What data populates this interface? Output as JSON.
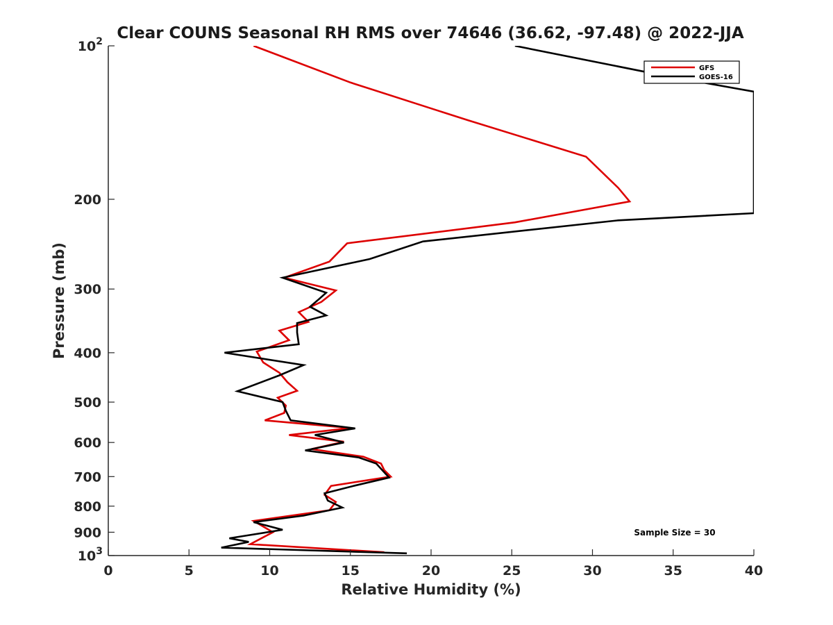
{
  "chart_data": {
    "type": "line",
    "title": "Clear COUNS Seasonal RH RMS over 74646 (36.62, -97.48) @ 2022-JJA",
    "xlabel": "Relative Humidity (%)",
    "ylabel": "Pressure (mb)",
    "xlim": [
      0,
      40
    ],
    "ylim": [
      100,
      1000
    ],
    "y_scale": "log",
    "y_reversed": true,
    "grid": false,
    "legend_position": "top-right",
    "x_ticks": [
      0,
      5,
      10,
      15,
      20,
      25,
      30,
      35,
      40
    ],
    "x_tick_labels": [
      "0",
      "5",
      "10",
      "15",
      "20",
      "25",
      "30",
      "35",
      "40"
    ],
    "y_ticks": [
      100,
      200,
      300,
      400,
      500,
      600,
      700,
      800,
      900,
      1000
    ],
    "y_tick_labels": [
      {
        "base": "10",
        "exp": "2"
      },
      {
        "base": "200",
        "exp": ""
      },
      {
        "base": "300",
        "exp": ""
      },
      {
        "base": "400",
        "exp": ""
      },
      {
        "base": "500",
        "exp": ""
      },
      {
        "base": "600",
        "exp": ""
      },
      {
        "base": "700",
        "exp": ""
      },
      {
        "base": "800",
        "exp": ""
      },
      {
        "base": "900",
        "exp": ""
      },
      {
        "base": "10",
        "exp": "3"
      }
    ],
    "annotation": "Sample Size = 30",
    "series": [
      {
        "name": "GFS",
        "color": "#dd0000",
        "x": [
          9.0,
          15.0,
          22.3,
          29.6,
          31.6,
          32.3,
          25.2,
          14.8,
          13.7,
          10.9,
          14.1,
          13.2,
          11.8,
          12.4,
          10.6,
          11.2,
          9.2,
          9.6,
          10.6,
          11.1,
          11.7,
          10.5,
          11.0,
          10.9,
          9.7,
          15.0,
          11.2,
          14.6,
          12.6,
          15.8,
          16.9,
          17.1,
          17.5,
          13.8,
          13.4,
          14.1,
          13.7,
          9.0,
          10.2,
          8.8,
          17.1
        ],
        "y": [
          100,
          118,
          140,
          165,
          190,
          202,
          222,
          244,
          265,
          285,
          302,
          318,
          333,
          348,
          362,
          378,
          398,
          418,
          438,
          457,
          475,
          490,
          508,
          525,
          543,
          562,
          580,
          598,
          618,
          640,
          660,
          680,
          700,
          730,
          760,
          785,
          815,
          855,
          900,
          950,
          985
        ]
      },
      {
        "name": "GOES-16",
        "color": "#000000",
        "x": [
          25.2,
          34.2,
          40.0,
          40.0,
          31.6,
          19.5,
          16.2,
          10.8,
          13.5,
          13.0,
          12.5,
          13.5,
          11.7,
          11.7,
          11.8,
          7.2,
          12.1,
          10.6,
          8.0,
          10.8,
          11.0,
          11.3,
          15.3,
          12.8,
          14.6,
          12.2,
          15.5,
          16.6,
          17.4,
          15.2,
          13.4,
          13.6,
          14.5,
          12.1,
          9.0,
          10.8,
          7.5,
          8.7,
          7.0,
          18.5
        ],
        "y": [
          100,
          114,
          123,
          213,
          220,
          242,
          262,
          285,
          305,
          315,
          325,
          338,
          350,
          365,
          385,
          400,
          423,
          443,
          476,
          500,
          520,
          543,
          563,
          580,
          600,
          622,
          642,
          660,
          703,
          730,
          755,
          780,
          805,
          835,
          860,
          890,
          925,
          940,
          965,
          990
        ]
      }
    ]
  }
}
